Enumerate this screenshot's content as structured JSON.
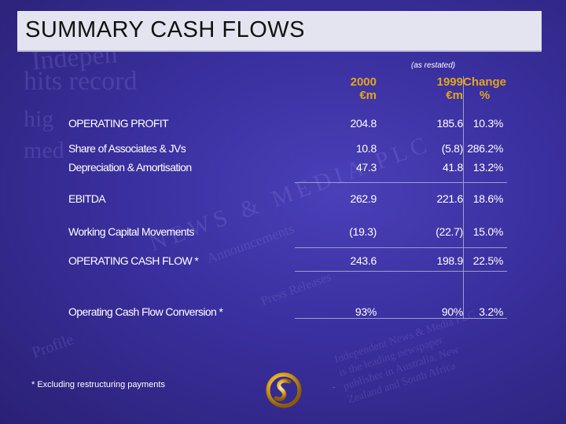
{
  "title": "SUMMARY CASH FLOWS",
  "note_restated": "(as restated)",
  "columns": [
    {
      "year": "2000",
      "unit": "€m"
    },
    {
      "year": "1999",
      "unit": "€m"
    },
    {
      "year": "Change",
      "unit": "%"
    }
  ],
  "rows": [
    {
      "label": "OPERATING PROFIT",
      "v2000": "204.8",
      "v1999": "185.6",
      "change": "10.3%"
    },
    {
      "label": "Share of Associates & JVs",
      "v2000": "10.8",
      "v1999": "(5.8)",
      "change": "286.2%"
    },
    {
      "label": "Depreciation & Amortisation",
      "v2000": "47.3",
      "v1999": "41.8",
      "change": "13.2%"
    },
    {
      "label": "EBITDA",
      "v2000": "262.9",
      "v1999": "221.6",
      "change": "18.6%"
    },
    {
      "label": "Working Capital Movements",
      "v2000": "(19.3)",
      "v1999": "(22.7)",
      "change": "15.0%"
    },
    {
      "label": "OPERATING CASH FLOW *",
      "v2000": "243.6",
      "v1999": "198.9",
      "change": "22.5%"
    },
    {
      "label": "Operating Cash Flow Conversion *",
      "v2000": "93%",
      "v1999": "90%",
      "change": "3.2%"
    }
  ],
  "footnote": "* Excluding restructuring payments",
  "colors": {
    "accent": "#e2a51a",
    "background": "#3a2f9e",
    "title_bar": "#e4e4f0"
  },
  "logo_icon": "gold-swirl-logo-icon"
}
